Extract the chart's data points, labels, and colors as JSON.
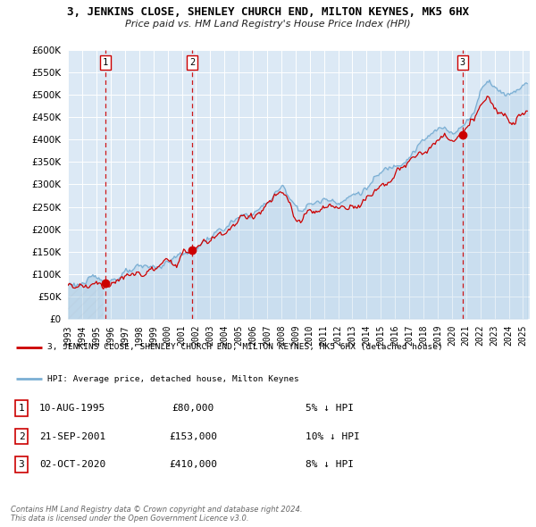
{
  "title": "3, JENKINS CLOSE, SHENLEY CHURCH END, MILTON KEYNES, MK5 6HX",
  "subtitle": "Price paid vs. HM Land Registry's House Price Index (HPI)",
  "background_color": "#ffffff",
  "plot_bg_color": "#dce9f5",
  "grid_color": "#ffffff",
  "sale_dates": [
    1995.61,
    2001.72,
    2020.75
  ],
  "sale_prices": [
    80000,
    153000,
    410000
  ],
  "sale_labels": [
    "1",
    "2",
    "3"
  ],
  "sale_color": "#cc0000",
  "hpi_color": "#7bafd4",
  "ylim": [
    0,
    600000
  ],
  "yticks": [
    0,
    50000,
    100000,
    150000,
    200000,
    250000,
    300000,
    350000,
    400000,
    450000,
    500000,
    550000,
    600000
  ],
  "xlim_start": 1993.0,
  "xlim_end": 2025.5,
  "xticks": [
    1993,
    1994,
    1995,
    1996,
    1997,
    1998,
    1999,
    2000,
    2001,
    2002,
    2003,
    2004,
    2005,
    2006,
    2007,
    2008,
    2009,
    2010,
    2011,
    2012,
    2013,
    2014,
    2015,
    2016,
    2017,
    2018,
    2019,
    2020,
    2021,
    2022,
    2023,
    2024,
    2025
  ],
  "legend_label_red": "3, JENKINS CLOSE, SHENLEY CHURCH END, MILTON KEYNES, MK5 6HX (detached house)",
  "legend_label_blue": "HPI: Average price, detached house, Milton Keynes",
  "table_rows": [
    [
      "1",
      "10-AUG-1995",
      "£80,000",
      "5% ↓ HPI"
    ],
    [
      "2",
      "21-SEP-2001",
      "£153,000",
      "10% ↓ HPI"
    ],
    [
      "3",
      "02-OCT-2020",
      "£410,000",
      "8% ↓ HPI"
    ]
  ],
  "footer": "Contains HM Land Registry data © Crown copyright and database right 2024.\nThis data is licensed under the Open Government Licence v3.0.",
  "dashed_line_color": "#cc0000",
  "marker_color": "#cc0000",
  "hpi_anchor_years": [
    1993.0,
    1993.5,
    1994.0,
    1994.5,
    1995.0,
    1995.5,
    1996.0,
    1996.5,
    1997.0,
    1997.5,
    1998.0,
    1998.5,
    1999.0,
    1999.5,
    2000.0,
    2000.5,
    2001.0,
    2001.5,
    2002.0,
    2002.5,
    2003.0,
    2003.5,
    2004.0,
    2004.5,
    2005.0,
    2005.5,
    2006.0,
    2006.5,
    2007.0,
    2007.5,
    2008.0,
    2008.5,
    2009.0,
    2009.5,
    2010.0,
    2010.5,
    2011.0,
    2011.5,
    2012.0,
    2012.5,
    2013.0,
    2013.5,
    2014.0,
    2014.5,
    2015.0,
    2015.5,
    2016.0,
    2016.5,
    2017.0,
    2017.5,
    2018.0,
    2018.5,
    2019.0,
    2019.5,
    2020.0,
    2020.5,
    2021.0,
    2021.5,
    2022.0,
    2022.5,
    2023.0,
    2023.5,
    2024.0,
    2024.5,
    2025.0
  ],
  "hpi_anchor_prices": [
    78000,
    79000,
    81000,
    83000,
    86000,
    88000,
    92000,
    96000,
    100000,
    103000,
    107000,
    111000,
    116000,
    121000,
    128000,
    136000,
    145000,
    152000,
    160000,
    172000,
    183000,
    193000,
    202000,
    212000,
    220000,
    228000,
    236000,
    246000,
    258000,
    278000,
    293000,
    280000,
    255000,
    248000,
    255000,
    260000,
    265000,
    268000,
    268000,
    270000,
    276000,
    283000,
    293000,
    308000,
    322000,
    334000,
    345000,
    358000,
    370000,
    385000,
    397000,
    408000,
    418000,
    425000,
    422000,
    425000,
    438000,
    460000,
    510000,
    540000,
    525000,
    505000,
    505000,
    510000,
    530000
  ],
  "red_anchor_years": [
    1993.0,
    1993.5,
    1994.0,
    1994.5,
    1995.0,
    1995.61,
    1996.0,
    1996.5,
    1997.0,
    1997.5,
    1998.0,
    1998.5,
    1999.0,
    1999.5,
    2000.0,
    2000.5,
    2001.0,
    2001.72,
    2002.0,
    2002.5,
    2003.0,
    2003.5,
    2004.0,
    2004.5,
    2005.0,
    2005.5,
    2006.0,
    2006.5,
    2007.0,
    2007.5,
    2008.0,
    2008.5,
    2009.0,
    2009.5,
    2010.0,
    2010.5,
    2011.0,
    2011.5,
    2012.0,
    2012.5,
    2013.0,
    2013.5,
    2014.0,
    2014.5,
    2015.0,
    2015.5,
    2016.0,
    2016.5,
    2017.0,
    2017.5,
    2018.0,
    2018.5,
    2019.0,
    2019.5,
    2020.0,
    2020.75,
    2021.0,
    2021.5,
    2022.0,
    2022.5,
    2023.0,
    2023.5,
    2024.0,
    2024.5,
    2025.0
  ],
  "red_anchor_prices": [
    72000,
    73000,
    75000,
    77000,
    79000,
    80000,
    83000,
    87000,
    91000,
    95000,
    99000,
    103000,
    108000,
    113000,
    120000,
    128000,
    138000,
    153000,
    158000,
    165000,
    175000,
    185000,
    196000,
    207000,
    216000,
    224000,
    232000,
    242000,
    255000,
    270000,
    278000,
    255000,
    215000,
    218000,
    232000,
    238000,
    242000,
    246000,
    246000,
    248000,
    254000,
    261000,
    271000,
    285000,
    298000,
    310000,
    320000,
    333000,
    345000,
    360000,
    372000,
    383000,
    393000,
    400000,
    397000,
    410000,
    418000,
    435000,
    478000,
    495000,
    460000,
    455000,
    458000,
    462000,
    470000
  ]
}
